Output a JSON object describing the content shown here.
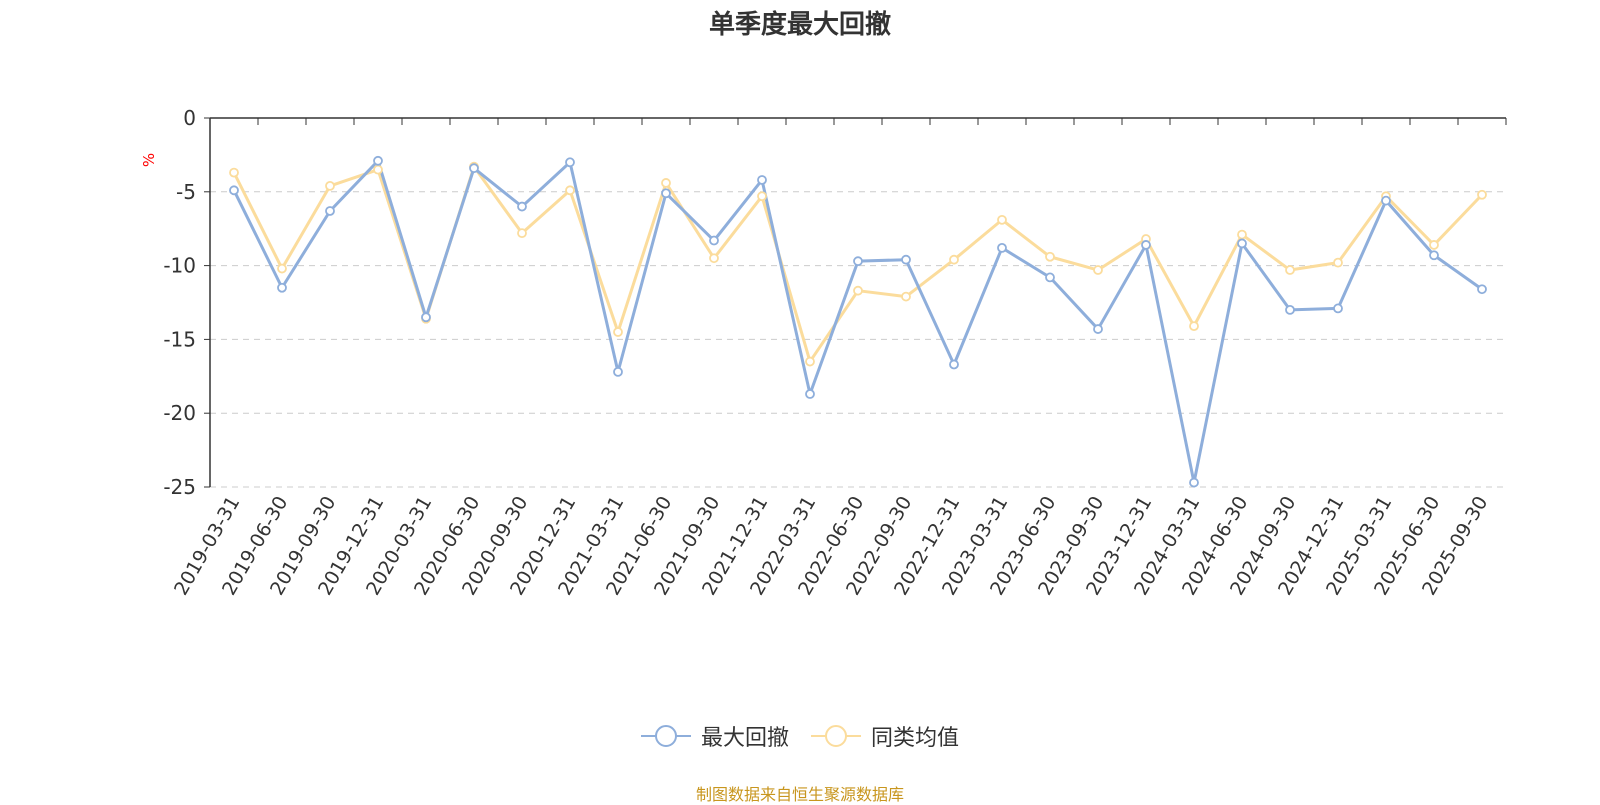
{
  "chart_data": {
    "type": "line",
    "title": "单季度最大回撤",
    "ylabel": "%",
    "xlabel": "",
    "ylim": [
      -25,
      0
    ],
    "yticks": [
      0,
      -5,
      -10,
      -15,
      -20,
      -25
    ],
    "grid": true,
    "legend_position": "bottom-center",
    "categories": [
      "2019-03-31",
      "2019-06-30",
      "2019-09-30",
      "2019-12-31",
      "2020-03-31",
      "2020-06-30",
      "2020-09-30",
      "2020-12-31",
      "2021-03-31",
      "2021-06-30",
      "2021-09-30",
      "2021-12-31",
      "2022-03-31",
      "2022-06-30",
      "2022-09-30",
      "2022-12-31",
      "2023-03-31",
      "2023-06-30",
      "2023-09-30",
      "2023-12-31",
      "2024-03-31",
      "2024-06-30",
      "2024-09-30",
      "2024-12-31",
      "2025-03-31",
      "2025-06-30",
      "2025-09-30"
    ],
    "series": [
      {
        "name": "最大回撤",
        "color": "#8eaedb",
        "values": [
          -4.9,
          -11.5,
          -6.3,
          -2.9,
          -13.5,
          -3.4,
          -6.0,
          -3.0,
          -17.2,
          -5.1,
          -8.3,
          -4.2,
          -18.7,
          -9.7,
          -9.6,
          -16.7,
          -8.8,
          -10.8,
          -14.3,
          -8.6,
          -24.7,
          -8.5,
          -13.0,
          -12.9,
          -5.6,
          -9.3,
          -11.6
        ]
      },
      {
        "name": "同类均值",
        "color": "#fbdc9c",
        "values": [
          -3.7,
          -10.2,
          -4.6,
          -3.5,
          -13.6,
          -3.3,
          -7.8,
          -4.9,
          -14.5,
          -4.4,
          -9.5,
          -5.3,
          -16.5,
          -11.7,
          -12.1,
          -9.6,
          -6.9,
          -9.4,
          -10.3,
          -8.2,
          -14.1,
          -7.9,
          -10.3,
          -9.8,
          -5.3,
          -8.6,
          -5.2
        ]
      }
    ]
  },
  "footer": {
    "source": "制图数据来自恒生聚源数据库"
  },
  "colors": {
    "axis": "#333333",
    "grid": "#cccccc",
    "unit_label": "#ff0000",
    "source_text": "#c8961e"
  }
}
